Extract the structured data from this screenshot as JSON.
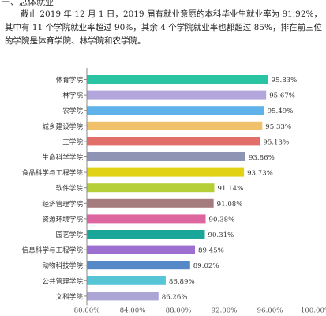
{
  "document": {
    "heading_fragment": "一、总体就业",
    "paragraph": "截止 2019 年 12 月 1 日，2019 届有就业意愿的本科毕业生就业率为 91.92%，其中有 11 个学院就业率超过 90%，其余 4 个学院就业率也都超过 85%，排在前三位的学院是体育学院、林学院和农学院。"
  },
  "chart_data": {
    "type": "bar",
    "orientation": "horizontal",
    "categories": [
      "体育学院",
      "林学院",
      "农学院",
      "城乡建设学院",
      "工学院",
      "生命科学学院",
      "食品科学与工程学院",
      "软件学院",
      "经济管理学院",
      "资源环境学院",
      "园艺学院",
      "信息科学与工程学院",
      "动物科技学院",
      "公共管理学院",
      "文科学院"
    ],
    "values": [
      95.83,
      95.67,
      95.49,
      95.33,
      95.13,
      93.86,
      93.73,
      91.14,
      91.08,
      90.38,
      90.31,
      89.45,
      89.02,
      86.89,
      86.26
    ],
    "labels": [
      "95.83%",
      "95.67%",
      "95.49%",
      "95.33%",
      "95.13%",
      "93.86%",
      "93.73%",
      "91.14%",
      "91.08%",
      "90.38%",
      "90.31%",
      "89.45%",
      "89.02%",
      "86.89%",
      "86.26%"
    ],
    "colors": [
      "#2bc4a3",
      "#b3a6dc",
      "#5fb2ea",
      "#f1c06a",
      "#e26e6a",
      "#8d94b4",
      "#e2d216",
      "#b5cf38",
      "#a67b7e",
      "#de66a0",
      "#1aa79a",
      "#9c6fd0",
      "#5588c6",
      "#56c6d6",
      "#aca6d6"
    ],
    "xlim": [
      80,
      100
    ],
    "xticks": [
      "80.00%",
      "84.00%",
      "88.00%",
      "92.00%",
      "96.00%",
      "100.00%"
    ],
    "grid": false
  }
}
